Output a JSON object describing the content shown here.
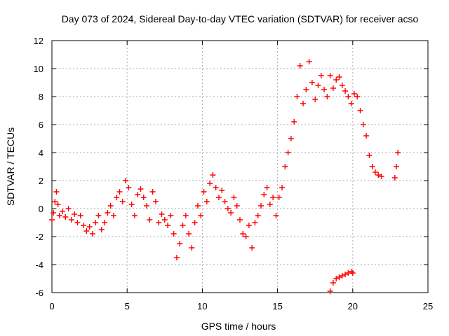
{
  "chart_data": {
    "type": "scatter",
    "title": "Day 073 of 2024, Sidereal Day-to-day VTEC variation (SDTVAR) for receiver acso",
    "xlabel": "GPS time / hours",
    "ylabel": "SDTVAR / TECUs",
    "xlim": [
      0,
      25
    ],
    "ylim": [
      -6,
      12
    ],
    "xticks": [
      "0",
      "5",
      "10",
      "15",
      "20",
      "25"
    ],
    "yticks": [
      "-6",
      "-4",
      "-2",
      "0",
      "2",
      "4",
      "6",
      "8",
      "10",
      "12"
    ],
    "grid": true,
    "marker": "plus",
    "color": "#ff0000",
    "series": [
      {
        "name": "SDTVAR",
        "x": [
          0.0,
          0.1,
          0.2,
          0.3,
          0.4,
          0.5,
          0.7,
          0.9,
          1.1,
          1.3,
          1.5,
          1.7,
          1.9,
          2.1,
          2.3,
          2.5,
          2.7,
          2.9,
          3.1,
          3.3,
          3.5,
          3.7,
          3.9,
          4.1,
          4.3,
          4.5,
          4.7,
          4.9,
          5.1,
          5.3,
          5.5,
          5.7,
          5.9,
          6.1,
          6.3,
          6.5,
          6.7,
          6.9,
          7.1,
          7.3,
          7.5,
          7.7,
          7.9,
          8.1,
          8.3,
          8.5,
          8.7,
          8.9,
          9.1,
          9.3,
          9.5,
          9.7,
          9.9,
          10.1,
          10.3,
          10.5,
          10.7,
          10.9,
          11.1,
          11.3,
          11.5,
          11.7,
          11.9,
          12.1,
          12.3,
          12.5,
          12.7,
          12.9,
          13.1,
          13.3,
          13.5,
          13.7,
          13.9,
          14.1,
          14.3,
          14.5,
          14.7,
          14.9,
          15.1,
          15.3,
          15.5,
          15.7,
          15.9,
          16.1,
          16.3,
          16.5,
          16.7,
          16.9,
          17.1,
          17.3,
          17.5,
          17.7,
          17.9,
          18.1,
          18.3,
          18.5,
          18.7,
          18.9,
          19.1,
          19.3,
          19.5,
          19.7,
          19.9,
          20.1,
          20.3,
          20.5,
          20.7,
          20.9,
          21.1,
          21.3,
          21.5,
          21.7,
          21.9,
          22.8,
          22.9,
          23.0,
          18.5,
          18.7,
          18.9,
          19.1,
          19.3,
          19.5,
          19.7,
          19.9,
          20.0
        ],
        "y": [
          -0.8,
          -0.3,
          0.5,
          1.2,
          0.3,
          -0.5,
          -0.2,
          -0.6,
          0.0,
          -0.8,
          -0.4,
          -1.0,
          -0.5,
          -1.2,
          -1.6,
          -1.3,
          -1.8,
          -1.0,
          -0.5,
          -1.5,
          -1.0,
          -0.3,
          0.2,
          -0.5,
          0.8,
          1.2,
          0.5,
          2.0,
          1.5,
          0.3,
          -0.5,
          1.0,
          1.4,
          0.8,
          0.2,
          -0.8,
          1.2,
          0.5,
          -1.0,
          -0.4,
          -0.8,
          -1.2,
          -0.5,
          -1.8,
          -3.5,
          -2.5,
          -1.2,
          -0.5,
          -1.8,
          -2.8,
          -1.0,
          0.2,
          -0.5,
          1.2,
          0.5,
          1.8,
          2.4,
          1.5,
          0.8,
          1.3,
          0.5,
          0.0,
          -0.3,
          0.8,
          0.2,
          -0.8,
          -1.8,
          -2.0,
          -1.2,
          -2.8,
          -1.0,
          -0.5,
          0.2,
          1.0,
          1.5,
          0.3,
          0.8,
          -0.5,
          0.8,
          1.5,
          3.0,
          4.0,
          5.0,
          6.2,
          8.0,
          10.2,
          7.5,
          8.5,
          10.5,
          9.0,
          7.8,
          8.8,
          9.5,
          8.5,
          8.0,
          9.5,
          8.6,
          9.2,
          9.4,
          8.8,
          8.4,
          8.0,
          7.5,
          8.2,
          8.0,
          7.0,
          6.0,
          5.2,
          3.8,
          3.0,
          2.6,
          2.4,
          2.3,
          2.2,
          3.0,
          4.0,
          -5.9,
          -5.3,
          -5.0,
          -4.9,
          -4.8,
          -4.7,
          -4.6,
          -4.5,
          -4.6
        ]
      }
    ]
  }
}
